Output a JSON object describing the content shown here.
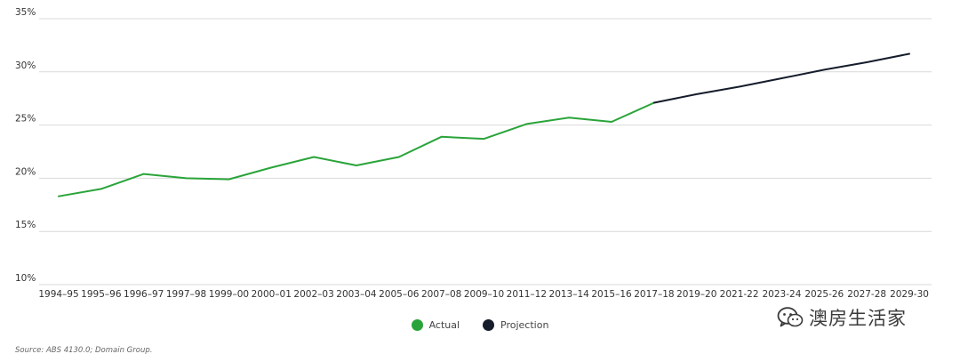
{
  "chart_data": {
    "type": "line",
    "categories": [
      "1994–95",
      "1995–96",
      "1996–97",
      "1997–98",
      "1999–00",
      "2000–01",
      "2002–03",
      "2003–04",
      "2005–06",
      "2007–08",
      "2009–10",
      "2011–12",
      "2013–14",
      "2015–16",
      "2017–18",
      "2019–20",
      "2021-22",
      "2023-24",
      "2025-26",
      "2027-28",
      "2029-30"
    ],
    "series": [
      {
        "name": "Actual",
        "color": "#2aa43a",
        "values": [
          18.3,
          19.0,
          20.4,
          20.0,
          19.9,
          21.0,
          22.0,
          21.2,
          22.0,
          23.9,
          23.7,
          25.1,
          25.7,
          25.3,
          27.1,
          null,
          null,
          null,
          null,
          null,
          null
        ]
      },
      {
        "name": "Projection",
        "color": "#151c2b",
        "values": [
          null,
          null,
          null,
          null,
          null,
          null,
          null,
          null,
          null,
          null,
          null,
          null,
          null,
          null,
          27.1,
          27.9,
          28.6,
          29.4,
          30.2,
          30.9,
          31.7
        ]
      }
    ],
    "y_ticks": [
      "10%",
      "15%",
      "20%",
      "25%",
      "30%",
      "35%"
    ],
    "y_tick_values": [
      10,
      15,
      20,
      25,
      30,
      35
    ],
    "ylim": [
      10,
      35
    ],
    "grid": true,
    "legend_position": "bottom-center",
    "title": "",
    "xlabel": "",
    "ylabel": ""
  },
  "legend": {
    "actual_label": "Actual",
    "projection_label": "Projection",
    "actual_color": "#2aa43a",
    "projection_color": "#151c2b"
  },
  "source": "Source: ABS 4130.0; Domain Group.",
  "watermark": {
    "text": "澳房生活家",
    "icon": "wechat-icon"
  }
}
